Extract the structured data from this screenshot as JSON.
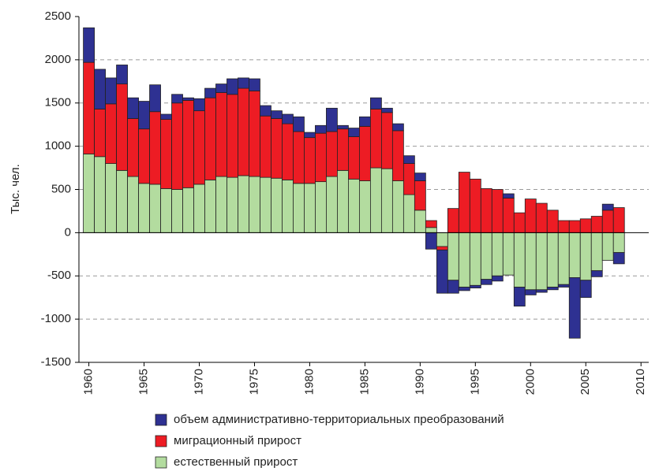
{
  "chart_data": {
    "type": "stacked_bar",
    "y_label": "Тыс. чел.",
    "x": [
      1960,
      1961,
      1962,
      1963,
      1964,
      1965,
      1966,
      1967,
      1968,
      1969,
      1970,
      1971,
      1972,
      1973,
      1974,
      1975,
      1976,
      1977,
      1978,
      1979,
      1980,
      1981,
      1982,
      1983,
      1984,
      1985,
      1986,
      1987,
      1988,
      1989,
      1990,
      1991,
      1992,
      1993,
      1994,
      1995,
      1996,
      1997,
      1998,
      1999,
      2000,
      2001,
      2002,
      2003,
      2004,
      2005,
      2006,
      2007,
      2008
    ],
    "series": [
      {
        "name": "естественный прирост",
        "color": "#b3dc9f",
        "values": [
          910,
          880,
          800,
          720,
          650,
          570,
          560,
          510,
          500,
          520,
          560,
          610,
          650,
          640,
          660,
          650,
          640,
          630,
          610,
          570,
          570,
          590,
          650,
          720,
          620,
          600,
          750,
          740,
          600,
          440,
          260,
          60,
          -160,
          -550,
          -630,
          -610,
          -540,
          -500,
          -490,
          -630,
          -660,
          -660,
          -630,
          -600,
          -520,
          -550,
          -440,
          -320,
          -230
        ]
      },
      {
        "name": "миграционный прирост",
        "color": "#ed1c24",
        "values": [
          1060,
          550,
          690,
          1000,
          670,
          630,
          840,
          800,
          1000,
          1010,
          850,
          950,
          970,
          960,
          1010,
          990,
          710,
          690,
          650,
          600,
          530,
          560,
          520,
          480,
          490,
          630,
          680,
          650,
          580,
          360,
          340,
          80,
          -40,
          280,
          700,
          620,
          510,
          500,
          400,
          230,
          390,
          340,
          260,
          140,
          140,
          160,
          190,
          260,
          290
        ]
      },
      {
        "name": "объем административно-территориальных преобразований",
        "color": "#2e3192",
        "values": [
          400,
          460,
          300,
          220,
          240,
          320,
          310,
          60,
          100,
          30,
          140,
          110,
          100,
          180,
          120,
          140,
          120,
          90,
          110,
          170,
          60,
          90,
          270,
          40,
          100,
          110,
          130,
          50,
          80,
          90,
          90,
          -190,
          -500,
          -150,
          -40,
          -30,
          -60,
          -60,
          50,
          -220,
          -60,
          -30,
          -30,
          -30,
          -700,
          -200,
          -70,
          70,
          -130
        ]
      }
    ],
    "xlim": [
      1959.1,
      2010.7
    ],
    "xticks": [
      1960,
      1965,
      1970,
      1975,
      1980,
      1985,
      1990,
      1995,
      2000,
      2005,
      2010
    ],
    "ylim": [
      -1500,
      2500
    ],
    "yticks": [
      -1500,
      -1000,
      -500,
      0,
      500,
      1000,
      1500,
      2000,
      2500
    ],
    "grid": true
  }
}
